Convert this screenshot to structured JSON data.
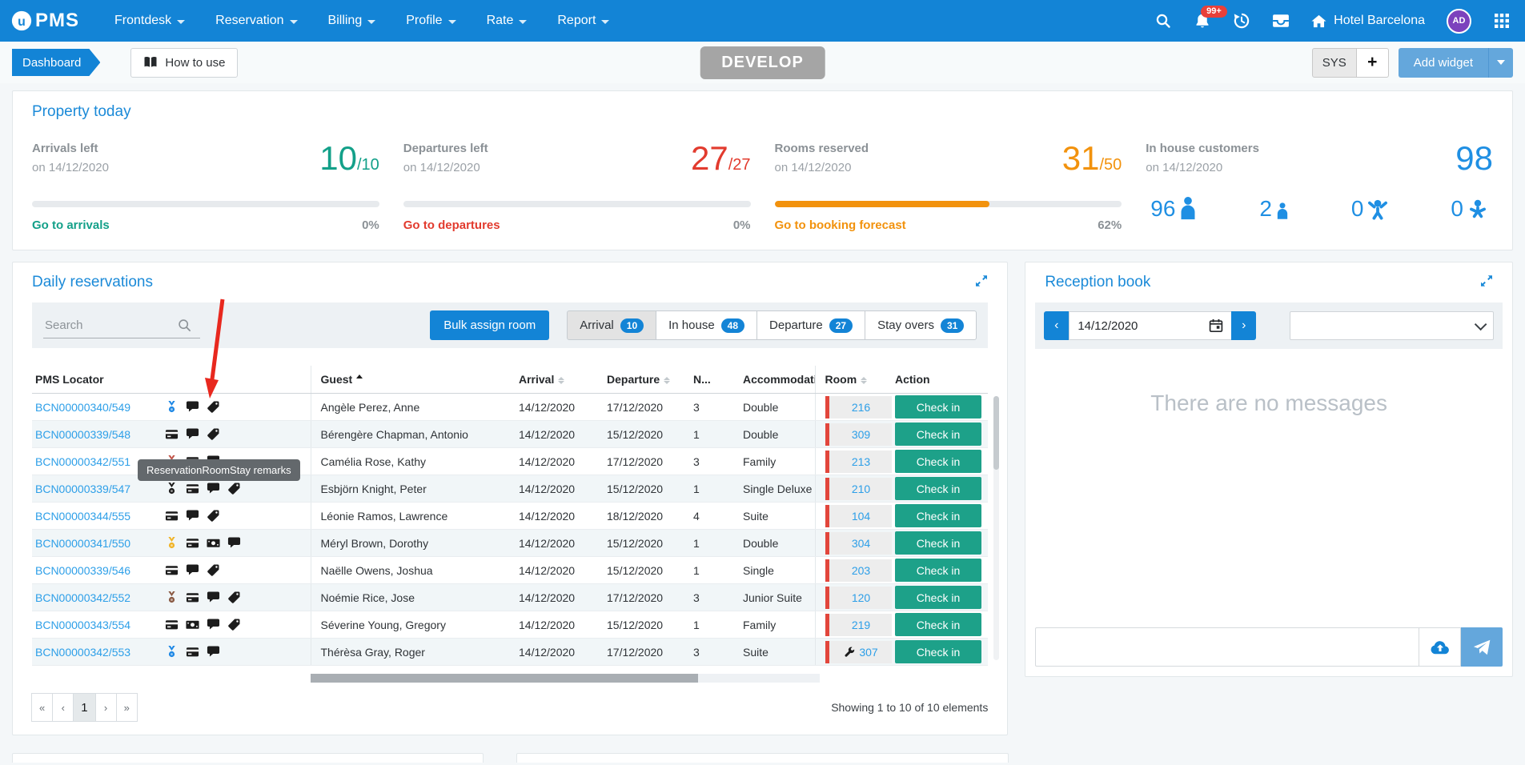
{
  "nav": {
    "logo_text": "PMS",
    "menus": [
      "Frontdesk",
      "Reservation",
      "Billing",
      "Profile",
      "Rate",
      "Report"
    ],
    "notification_count": "99+",
    "hotel_name": "Hotel Barcelona",
    "avatar_initials": "AD"
  },
  "subbar": {
    "breadcrumb": "Dashboard",
    "how_to_use_label": "How to use",
    "env_badge": "DEVELOP",
    "sys_label": "SYS",
    "plus_label": "+",
    "add_widget_label": "Add widget"
  },
  "property_today": {
    "title": "Property today",
    "metrics": [
      {
        "label": "Arrivals left",
        "date": "on 14/12/2020",
        "value": "10",
        "total": "/10",
        "link": "Go to arrivals",
        "percent": "0%",
        "progress": 0,
        "color": "#13a089"
      },
      {
        "label": "Departures left",
        "date": "on 14/12/2020",
        "value": "27",
        "total": "/27",
        "link": "Go to departures",
        "percent": "0%",
        "progress": 0,
        "color": "#e23b2e"
      },
      {
        "label": "Rooms reserved",
        "date": "on 14/12/2020",
        "value": "31",
        "total": "/50",
        "link": "Go to booking forecast",
        "percent": "62%",
        "progress": 62,
        "color": "#f2920d"
      }
    ],
    "in_house": {
      "label": "In house customers",
      "date": "on 14/12/2020",
      "value": "98",
      "color": "#1f8fe3",
      "breakdown": [
        {
          "count": "96",
          "type": "adult"
        },
        {
          "count": "2",
          "type": "teen"
        },
        {
          "count": "0",
          "type": "child"
        },
        {
          "count": "0",
          "type": "baby"
        }
      ]
    }
  },
  "daily_reservations": {
    "title": "Daily reservations",
    "search_placeholder": "Search",
    "bulk_button": "Bulk assign room",
    "tabs": [
      {
        "label": "Arrival",
        "count": "10",
        "active": true
      },
      {
        "label": "In house",
        "count": "48",
        "active": false
      },
      {
        "label": "Departure",
        "count": "27",
        "active": false
      },
      {
        "label": "Stay overs",
        "count": "31",
        "active": false
      }
    ],
    "tooltip": "ReservationRoomStay remarks",
    "columns": [
      {
        "label": "PMS Locator",
        "sort": "none"
      },
      {
        "label": "Guest",
        "sort": "asc"
      },
      {
        "label": "Arrival",
        "sort": "both"
      },
      {
        "label": "Departure",
        "sort": "both"
      },
      {
        "label": "N...",
        "sort": "none"
      },
      {
        "label": "Accommodatio",
        "sort": "none"
      },
      {
        "label": "Room",
        "sort": "both"
      },
      {
        "label": "Action",
        "sort": "none"
      }
    ],
    "action_label": "Check in",
    "rows": [
      {
        "locator": "BCN00000340/549",
        "icons": [
          "medal-blue",
          "comment",
          "tag"
        ],
        "guest": "Angèle Perez, Anne",
        "arrival": "14/12/2020",
        "departure": "17/12/2020",
        "nights": "3",
        "accommodation": "Double",
        "room": "216",
        "maintenance": false
      },
      {
        "locator": "BCN00000339/548",
        "icons": [
          "card",
          "comment",
          "tag"
        ],
        "guest": "Bérengère Chapman, Antonio",
        "arrival": "14/12/2020",
        "departure": "15/12/2020",
        "nights": "1",
        "accommodation": "Double",
        "room": "309",
        "maintenance": false
      },
      {
        "locator": "BCN00000342/551",
        "icons": [
          "medal-red",
          "card",
          "comment"
        ],
        "guest": "Camélia Rose, Kathy",
        "arrival": "14/12/2020",
        "departure": "17/12/2020",
        "nights": "3",
        "accommodation": "Family",
        "room": "213",
        "maintenance": false
      },
      {
        "locator": "BCN00000339/547",
        "icons": [
          "medal-black",
          "card",
          "comment",
          "tag"
        ],
        "guest": "Esbjörn Knight, Peter",
        "arrival": "14/12/2020",
        "departure": "15/12/2020",
        "nights": "1",
        "accommodation": "Single Deluxe",
        "room": "210",
        "maintenance": false
      },
      {
        "locator": "BCN00000344/555",
        "icons": [
          "card",
          "comment",
          "tag"
        ],
        "guest": "Léonie Ramos, Lawrence",
        "arrival": "14/12/2020",
        "departure": "18/12/2020",
        "nights": "4",
        "accommodation": "Suite",
        "room": "104",
        "maintenance": false
      },
      {
        "locator": "BCN00000341/550",
        "icons": [
          "medal-gold",
          "card",
          "cash",
          "comment"
        ],
        "guest": "Méryl Brown, Dorothy",
        "arrival": "14/12/2020",
        "departure": "15/12/2020",
        "nights": "1",
        "accommodation": "Double",
        "room": "304",
        "maintenance": false
      },
      {
        "locator": "BCN00000339/546",
        "icons": [
          "card",
          "comment",
          "tag"
        ],
        "guest": "Naëlle Owens, Joshua",
        "arrival": "14/12/2020",
        "departure": "15/12/2020",
        "nights": "1",
        "accommodation": "Single",
        "room": "203",
        "maintenance": false
      },
      {
        "locator": "BCN00000342/552",
        "icons": [
          "medal-brown",
          "card",
          "comment",
          "tag"
        ],
        "guest": "Noémie Rice, Jose",
        "arrival": "14/12/2020",
        "departure": "17/12/2020",
        "nights": "3",
        "accommodation": "Junior Suite",
        "room": "120",
        "maintenance": false
      },
      {
        "locator": "BCN00000343/554",
        "icons": [
          "card",
          "cash",
          "comment",
          "tag"
        ],
        "guest": "Séverine Young, Gregory",
        "arrival": "14/12/2020",
        "departure": "15/12/2020",
        "nights": "1",
        "accommodation": "Family",
        "room": "219",
        "maintenance": false
      },
      {
        "locator": "BCN00000342/553",
        "icons": [
          "medal-blue",
          "card",
          "comment"
        ],
        "guest": "Thérèsa Gray, Roger",
        "arrival": "14/12/2020",
        "departure": "17/12/2020",
        "nights": "3",
        "accommodation": "Suite",
        "room": "307",
        "maintenance": true
      }
    ],
    "pagination": [
      "«",
      "‹",
      "1",
      "›",
      "»"
    ],
    "active_page": "1",
    "showing_text": "Showing 1 to 10 of 10 elements"
  },
  "reception_book": {
    "title": "Reception book",
    "date": "14/12/2020",
    "empty_message": "There are no messages"
  }
}
